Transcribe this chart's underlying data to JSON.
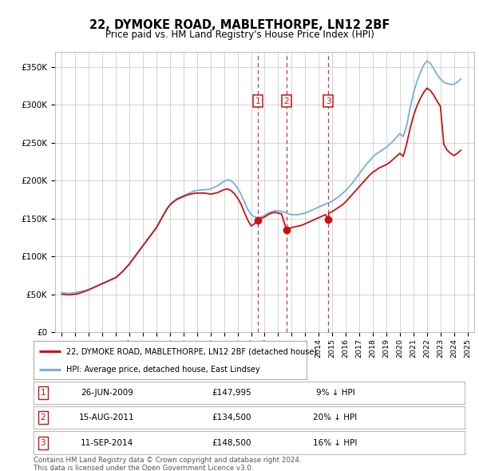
{
  "title": "22, DYMOKE ROAD, MABLETHORPE, LN12 2BF",
  "subtitle": "Price paid vs. HM Land Registry's House Price Index (HPI)",
  "ylabel_ticks": [
    "£0",
    "£50K",
    "£100K",
    "£150K",
    "£200K",
    "£250K",
    "£300K",
    "£350K"
  ],
  "ytick_values": [
    0,
    50000,
    100000,
    150000,
    200000,
    250000,
    300000,
    350000
  ],
  "ylim": [
    0,
    370000
  ],
  "xlim_start": 1994.5,
  "xlim_end": 2025.5,
  "hpi_line_color": "#7aadda",
  "property_line_color": "#cc1111",
  "sale_marker_color": "#cc1111",
  "sale_vline_color": "#cc1111",
  "grid_color": "#cccccc",
  "legend_label_property": "22, DYMOKE ROAD, MABLETHORPE, LN12 2BF (detached house)",
  "legend_label_hpi": "HPI: Average price, detached house, East Lindsey",
  "sales": [
    {
      "num": 1,
      "date": "26-JUN-2009",
      "x": 2009.49,
      "price": 147995,
      "pct": "9%"
    },
    {
      "num": 2,
      "date": "15-AUG-2011",
      "x": 2011.62,
      "price": 134500,
      "pct": "20%"
    },
    {
      "num": 3,
      "date": "11-SEP-2014",
      "x": 2014.7,
      "price": 148500,
      "pct": "16%"
    }
  ],
  "footer": "Contains HM Land Registry data © Crown copyright and database right 2024.\nThis data is licensed under the Open Government Licence v3.0.",
  "hpi_x": [
    1995,
    1995.25,
    1995.5,
    1995.75,
    1996,
    1996.25,
    1996.5,
    1996.75,
    1997,
    1997.25,
    1997.5,
    1997.75,
    1998,
    1998.25,
    1998.5,
    1998.75,
    1999,
    1999.25,
    1999.5,
    1999.75,
    2000,
    2000.25,
    2000.5,
    2000.75,
    2001,
    2001.25,
    2001.5,
    2001.75,
    2002,
    2002.25,
    2002.5,
    2002.75,
    2003,
    2003.25,
    2003.5,
    2003.75,
    2004,
    2004.25,
    2004.5,
    2004.75,
    2005,
    2005.25,
    2005.5,
    2005.75,
    2006,
    2006.25,
    2006.5,
    2006.75,
    2007,
    2007.25,
    2007.5,
    2007.75,
    2008,
    2008.25,
    2008.5,
    2008.75,
    2009,
    2009.25,
    2009.5,
    2009.75,
    2010,
    2010.25,
    2010.5,
    2010.75,
    2011,
    2011.25,
    2011.5,
    2011.75,
    2012,
    2012.25,
    2012.5,
    2012.75,
    2013,
    2013.25,
    2013.5,
    2013.75,
    2014,
    2014.25,
    2014.5,
    2014.75,
    2015,
    2015.25,
    2015.5,
    2015.75,
    2016,
    2016.25,
    2016.5,
    2016.75,
    2017,
    2017.25,
    2017.5,
    2017.75,
    2018,
    2018.25,
    2018.5,
    2018.75,
    2019,
    2019.25,
    2019.5,
    2019.75,
    2020,
    2020.25,
    2020.5,
    2020.75,
    2021,
    2021.25,
    2021.5,
    2021.75,
    2022,
    2022.25,
    2022.5,
    2022.75,
    2023,
    2023.25,
    2023.5,
    2023.75,
    2024,
    2024.25,
    2024.5
  ],
  "hpi_y": [
    52000,
    51500,
    51000,
    51500,
    52000,
    53000,
    54000,
    55000,
    56000,
    58000,
    60000,
    62000,
    64000,
    66000,
    68000,
    70000,
    72000,
    76000,
    80000,
    85000,
    90000,
    96000,
    102000,
    108000,
    114000,
    120000,
    126000,
    132000,
    138000,
    146000,
    154000,
    162000,
    168000,
    172000,
    176000,
    178000,
    180000,
    182000,
    184000,
    186000,
    187000,
    187500,
    188000,
    188000,
    189000,
    191000,
    193000,
    196000,
    199000,
    201000,
    200000,
    196000,
    190000,
    182000,
    172000,
    162000,
    155000,
    152000,
    151000,
    152000,
    154000,
    157000,
    159000,
    160000,
    160000,
    159000,
    158000,
    156000,
    155000,
    155000,
    155000,
    156000,
    157000,
    159000,
    161000,
    163000,
    165000,
    167000,
    169000,
    171000,
    173000,
    176000,
    179000,
    183000,
    187000,
    192000,
    197000,
    203000,
    209000,
    215000,
    221000,
    226000,
    231000,
    235000,
    238000,
    241000,
    244000,
    248000,
    252000,
    257000,
    262000,
    258000,
    272000,
    295000,
    315000,
    330000,
    342000,
    352000,
    358000,
    355000,
    348000,
    340000,
    334000,
    330000,
    328000,
    327000,
    327000,
    330000,
    334000
  ],
  "prop_x": [
    1995,
    1995.25,
    1995.5,
    1995.75,
    1996,
    1996.25,
    1996.5,
    1996.75,
    1997,
    1997.25,
    1997.5,
    1997.75,
    1998,
    1998.25,
    1998.5,
    1998.75,
    1999,
    1999.25,
    1999.5,
    1999.75,
    2000,
    2000.25,
    2000.5,
    2000.75,
    2001,
    2001.25,
    2001.5,
    2001.75,
    2002,
    2002.25,
    2002.5,
    2002.75,
    2003,
    2003.25,
    2003.5,
    2003.75,
    2004,
    2004.25,
    2004.5,
    2004.75,
    2005,
    2005.25,
    2005.5,
    2005.75,
    2006,
    2006.25,
    2006.5,
    2006.75,
    2007,
    2007.25,
    2007.5,
    2007.75,
    2008,
    2008.25,
    2008.5,
    2008.75,
    2009,
    2009.25,
    2009.49,
    2009.75,
    2010,
    2010.25,
    2010.5,
    2010.75,
    2011,
    2011.25,
    2011.62,
    2011.75,
    2012,
    2012.25,
    2012.5,
    2012.75,
    2013,
    2013.25,
    2013.5,
    2013.75,
    2014,
    2014.25,
    2014.5,
    2014.7,
    2014.75,
    2015,
    2015.25,
    2015.5,
    2015.75,
    2016,
    2016.25,
    2016.5,
    2016.75,
    2017,
    2017.25,
    2017.5,
    2017.75,
    2018,
    2018.25,
    2018.5,
    2018.75,
    2019,
    2019.25,
    2019.5,
    2019.75,
    2020,
    2020.25,
    2020.5,
    2020.75,
    2021,
    2021.25,
    2021.5,
    2021.75,
    2022,
    2022.25,
    2022.5,
    2022.75,
    2023,
    2023.25,
    2023.5,
    2023.75,
    2024,
    2024.25,
    2024.5
  ],
  "prop_y": [
    50000,
    49500,
    49000,
    49500,
    50000,
    51000,
    52500,
    54000,
    56000,
    58000,
    60000,
    62000,
    64000,
    66000,
    68000,
    70000,
    72000,
    76000,
    80000,
    85000,
    90000,
    96000,
    102000,
    108000,
    114000,
    120000,
    126000,
    132000,
    138000,
    146000,
    154000,
    162000,
    168000,
    172000,
    175000,
    177000,
    179000,
    181000,
    182000,
    183000,
    183500,
    183500,
    183500,
    183000,
    182000,
    183000,
    184000,
    186000,
    188000,
    189000,
    187000,
    183000,
    177000,
    169000,
    158000,
    148000,
    140000,
    143000,
    147995,
    150000,
    152000,
    155000,
    157000,
    158000,
    157000,
    156000,
    134500,
    136000,
    138000,
    139000,
    140000,
    141000,
    143000,
    145000,
    147000,
    149000,
    151000,
    153000,
    155000,
    148500,
    157000,
    159000,
    162000,
    165000,
    168000,
    172000,
    177000,
    182000,
    187000,
    192000,
    197000,
    202000,
    207000,
    211000,
    214000,
    217000,
    219000,
    221000,
    224000,
    228000,
    232000,
    236000,
    232000,
    248000,
    268000,
    285000,
    298000,
    308000,
    316000,
    322000,
    319000,
    313000,
    305000,
    298000,
    248000,
    240000,
    236000,
    233000,
    236000,
    240000
  ],
  "xtick_years": [
    1995,
    1996,
    1997,
    1998,
    1999,
    2000,
    2001,
    2002,
    2003,
    2004,
    2005,
    2006,
    2007,
    2008,
    2009,
    2010,
    2011,
    2012,
    2013,
    2014,
    2015,
    2016,
    2017,
    2018,
    2019,
    2020,
    2021,
    2022,
    2023,
    2024,
    2025
  ],
  "background_color": "#ffffff"
}
